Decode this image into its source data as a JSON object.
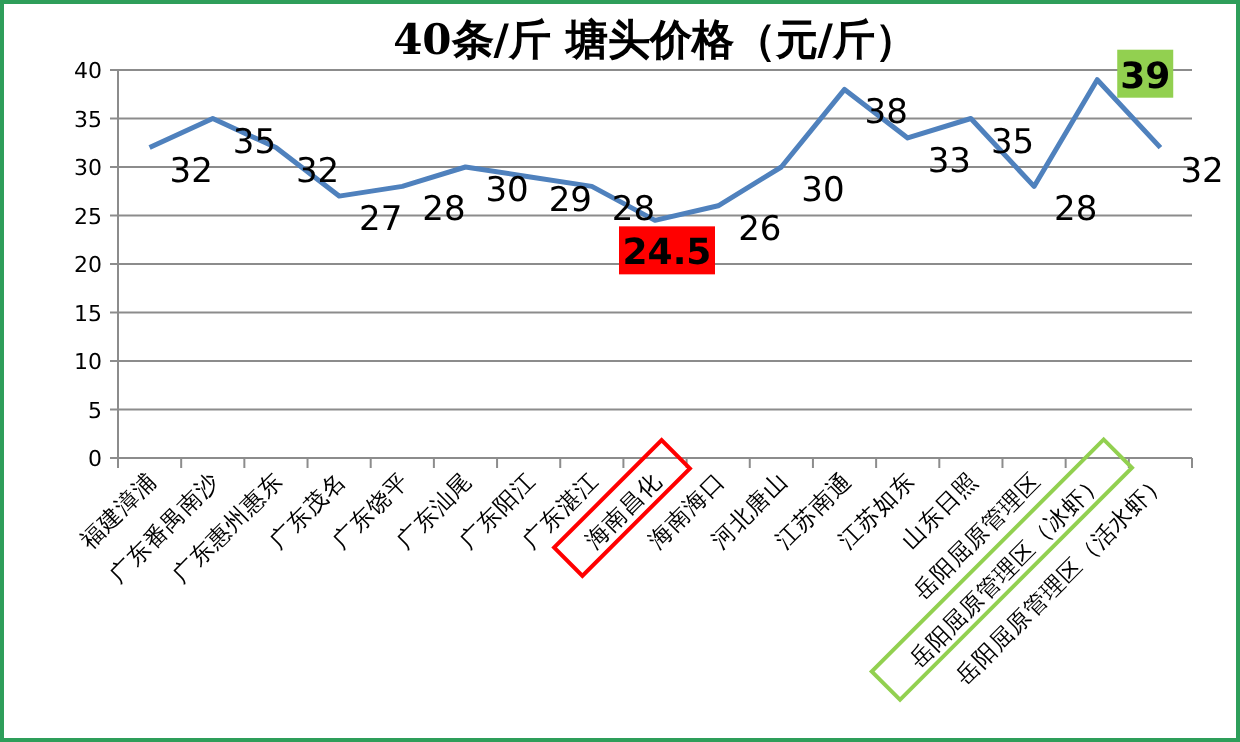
{
  "chart_data": {
    "type": "line",
    "title": "40条/斤      塘头价格（元/斤）",
    "categories": [
      "福建漳浦",
      "广东番禺南沙",
      "广东惠州惠东",
      "广东茂名",
      "广东饶平",
      "广东汕尾",
      "广东阳江",
      "广东湛江",
      "海南昌化",
      "海南海口",
      "河北唐山",
      "江苏南通",
      "江苏如东",
      "山东日照",
      "岳阳屈原管理区",
      "岳阳屈原管理区（冰虾）",
      "岳阳屈原管理区（活水虾）"
    ],
    "series": [
      {
        "color": "#4f81bd",
        "values": [
          32,
          35,
          32,
          27,
          28,
          30,
          29,
          28,
          24.5,
          26,
          30,
          38,
          33,
          35,
          28,
          39,
          32
        ],
        "colors": [
          null,
          null,
          null,
          null,
          null,
          null,
          null,
          null,
          "#ff0000",
          null,
          null,
          null,
          null,
          null,
          null,
          "#92d050",
          null
        ]
      }
    ],
    "ylim": [
      0,
      40
    ],
    "yticks": [
      0,
      5,
      10,
      15,
      20,
      25,
      30,
      35,
      40
    ],
    "grid": "y",
    "data_labels": true,
    "marker": "none",
    "line_style": "solid"
  }
}
